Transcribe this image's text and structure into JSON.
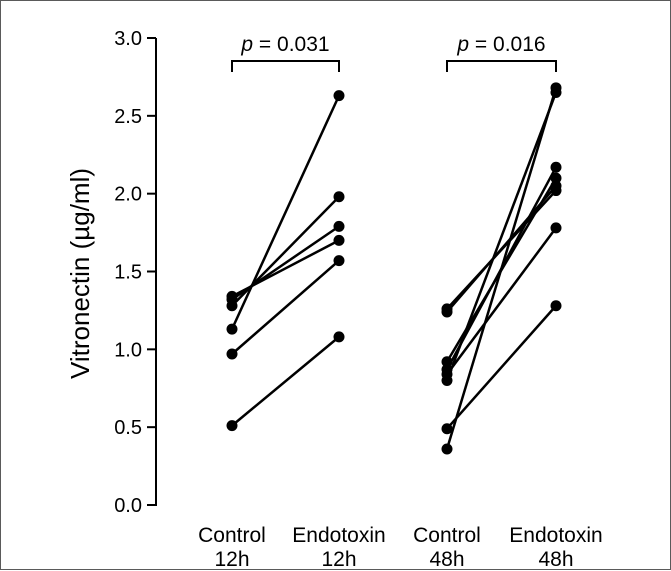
{
  "chart_data": {
    "type": "scatter",
    "variant": "paired-lines",
    "ylabel": "Vitronectin (µg/ml)",
    "ylim": [
      0,
      3.0
    ],
    "yticks": [
      "0.0",
      "0.5",
      "1.0",
      "1.5",
      "2.0",
      "2.5",
      "3.0"
    ],
    "grid": false,
    "categories": [
      {
        "line1": "Control",
        "line2": "12h"
      },
      {
        "line1": "Endotoxin",
        "line2": "12h"
      },
      {
        "line1": "Control",
        "line2": "48h"
      },
      {
        "line1": "Endotoxin",
        "line2": "48h"
      }
    ],
    "comparisons": [
      {
        "p_symbol": "p",
        "p_value": "= 0.031",
        "from_category": 0,
        "to_category": 1
      },
      {
        "p_symbol": "p",
        "p_value": "= 0.016",
        "from_category": 2,
        "to_category": 3
      }
    ],
    "pairs_12h": [
      {
        "control": 1.34,
        "endotoxin": 1.7
      },
      {
        "control": 1.32,
        "endotoxin": 1.79
      },
      {
        "control": 1.28,
        "endotoxin": 1.98
      },
      {
        "control": 1.13,
        "endotoxin": 2.63
      },
      {
        "control": 0.97,
        "endotoxin": 1.57
      },
      {
        "control": 0.51,
        "endotoxin": 1.08
      }
    ],
    "pairs_48h": [
      {
        "control": 1.26,
        "endotoxin": 2.02
      },
      {
        "control": 1.24,
        "endotoxin": 2.05
      },
      {
        "control": 0.92,
        "endotoxin": 2.1
      },
      {
        "control": 0.87,
        "endotoxin": 2.17
      },
      {
        "control": 0.84,
        "endotoxin": 1.78
      },
      {
        "control": 0.8,
        "endotoxin": 2.65
      },
      {
        "control": 0.49,
        "endotoxin": 1.28
      },
      {
        "control": 0.36,
        "endotoxin": 2.68
      }
    ],
    "marker_color": "#000000",
    "line_color": "#000000"
  }
}
